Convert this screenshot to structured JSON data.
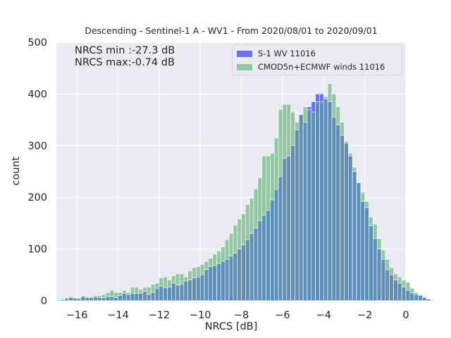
{
  "title": "Descending - Sentinel-1 A - WV1 - From 2020/08/01 to 2020/09/01",
  "annotation": {
    "line1": "NRCS min :-27.3 dB",
    "line2": "NRCS max:-0.74 dB"
  },
  "legend": {
    "entries": [
      {
        "label": "S-1 WV 11016",
        "color": "#6f6ff2"
      },
      {
        "label": "CMOD5n+ECMWF winds 11016",
        "color": "#93c7a4"
      }
    ]
  },
  "colors": {
    "background": "#eaeaf2",
    "grid": "#ffffff",
    "series1": "#6f6ff2",
    "series2": "#93c7a4",
    "overlap": "#5f8fb7"
  },
  "chart_data": {
    "type": "bar",
    "title": "Descending - Sentinel-1 A - WV1 - From 2020/08/01 to 2020/09/01",
    "xlabel": "NRCS [dB]",
    "ylabel": "count",
    "xlim": [
      -17,
      0
    ],
    "ylim": [
      0,
      500
    ],
    "xticks": [
      -16,
      -14,
      -12,
      -10,
      -8,
      -6,
      -4,
      -2,
      0
    ],
    "yticks": [
      0,
      100,
      200,
      300,
      400,
      500
    ],
    "grid": true,
    "legend_position": "top-right",
    "bin_width": 0.2,
    "x_start": -17.0,
    "series": [
      {
        "name": "S-1 WV 11016",
        "values": [
          0,
          2,
          4,
          6,
          5,
          4,
          8,
          6,
          6,
          7,
          6,
          6,
          8,
          8,
          6,
          10,
          14,
          12,
          14,
          14,
          14,
          18,
          12,
          16,
          24,
          28,
          25,
          26,
          34,
          30,
          32,
          38,
          40,
          44,
          46,
          50,
          60,
          66,
          68,
          72,
          76,
          80,
          86,
          92,
          100,
          108,
          118,
          130,
          140,
          155,
          165,
          175,
          195,
          215,
          240,
          275,
          280,
          300,
          330,
          360,
          345,
          375,
          385,
          400,
          400,
          390,
          385,
          355,
          340,
          320,
          305,
          280,
          250,
          228,
          192,
          180,
          145,
          120,
          100,
          80,
          60,
          50,
          40,
          34,
          26,
          20,
          15,
          12,
          10,
          6,
          3,
          1
        ]
      },
      {
        "name": "CMOD5n+ECMWF winds 11016",
        "values": [
          2,
          4,
          6,
          8,
          6,
          6,
          10,
          8,
          8,
          10,
          10,
          12,
          16,
          20,
          16,
          16,
          20,
          16,
          26,
          26,
          22,
          26,
          26,
          32,
          34,
          44,
          46,
          40,
          48,
          52,
          52,
          46,
          58,
          64,
          66,
          70,
          76,
          82,
          90,
          96,
          104,
          118,
          130,
          146,
          158,
          168,
          186,
          198,
          216,
          238,
          280,
          280,
          285,
          315,
          370,
          380,
          380,
          365,
          345,
          360,
          375,
          370,
          365,
          385,
          385,
          395,
          420,
          400,
          375,
          345,
          308,
          285,
          258,
          230,
          210,
          192,
          162,
          148,
          120,
          98,
          80,
          64,
          52,
          46,
          40,
          36,
          24,
          16,
          12,
          8,
          4,
          2
        ]
      }
    ]
  }
}
